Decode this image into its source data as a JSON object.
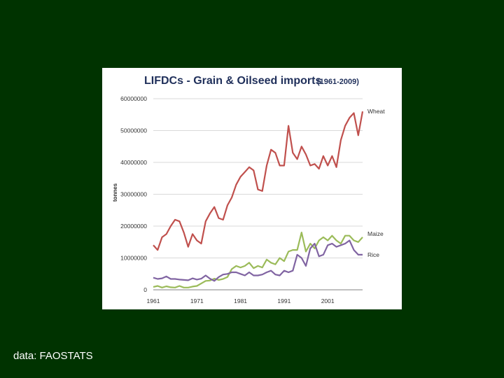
{
  "caption": "data: FAOSTATS",
  "colors": {
    "background": "#003300",
    "card": "#ffffff",
    "wheat": "#c0504d",
    "maize": "#9bbb59",
    "rice": "#8064a2",
    "grid": "#d9d9d9"
  },
  "chart_data": {
    "type": "line",
    "title": "LIFDCs - Grain & Oilseed imports",
    "subtitle": "(1961-2009)",
    "xlabel": "",
    "ylabel": "tonnes",
    "xlim": [
      1961,
      2009
    ],
    "ylim": [
      0,
      60000000
    ],
    "grid": true,
    "legend": "right, next to series ends",
    "yticks": [
      {
        "value": 0,
        "label": "0"
      },
      {
        "value": 10000000,
        "label": "10000000"
      },
      {
        "value": 20000000,
        "label": "20000000"
      },
      {
        "value": 30000000,
        "label": "30000000"
      },
      {
        "value": 40000000,
        "label": "40000000"
      },
      {
        "value": 50000000,
        "label": "50000000"
      },
      {
        "value": 60000000,
        "label": "60000000"
      }
    ],
    "xticks": [
      {
        "value": 1961,
        "label": "1961"
      },
      {
        "value": 1971,
        "label": "1971"
      },
      {
        "value": 1981,
        "label": "1981"
      },
      {
        "value": 1991,
        "label": "1991"
      },
      {
        "value": 2001,
        "label": "2001"
      }
    ],
    "x": [
      1961,
      1962,
      1963,
      1964,
      1965,
      1966,
      1967,
      1968,
      1969,
      1970,
      1971,
      1972,
      1973,
      1974,
      1975,
      1976,
      1977,
      1978,
      1979,
      1980,
      1981,
      1982,
      1983,
      1984,
      1985,
      1986,
      1987,
      1988,
      1989,
      1990,
      1991,
      1992,
      1993,
      1994,
      1995,
      1996,
      1997,
      1998,
      1999,
      2000,
      2001,
      2002,
      2003,
      2004,
      2005,
      2006,
      2007,
      2008,
      2009
    ],
    "series": [
      {
        "name": "Wheat",
        "color": "#c0504d",
        "values": [
          14000000,
          12500000,
          16500000,
          17500000,
          20000000,
          22000000,
          21500000,
          18000000,
          13500000,
          17500000,
          15500000,
          14500000,
          21500000,
          24000000,
          26000000,
          22500000,
          22000000,
          26500000,
          29000000,
          33000000,
          35500000,
          37000000,
          38500000,
          37500000,
          31500000,
          31000000,
          39000000,
          44000000,
          43000000,
          39000000,
          39000000,
          51500000,
          43000000,
          41000000,
          45000000,
          42500000,
          39000000,
          39500000,
          38000000,
          42000000,
          39000000,
          42000000,
          38500000,
          47000000,
          51500000,
          54000000,
          55500000,
          48500000,
          56000000
        ]
      },
      {
        "name": "Maize",
        "color": "#9bbb59",
        "values": [
          900000,
          1200000,
          700000,
          1100000,
          800000,
          700000,
          1200000,
          700000,
          700000,
          1000000,
          1200000,
          2000000,
          2800000,
          2900000,
          3500000,
          3100000,
          3400000,
          4000000,
          6500000,
          7500000,
          7000000,
          7500000,
          8500000,
          6800000,
          7500000,
          7000000,
          9500000,
          8500000,
          8000000,
          10000000,
          9000000,
          12000000,
          12500000,
          12500000,
          18000000,
          12000000,
          14500000,
          13000000,
          15500000,
          16500000,
          15500000,
          17000000,
          15500000,
          14500000,
          17000000,
          17000000,
          15500000,
          15000000,
          16500000
        ]
      },
      {
        "name": "Rice",
        "color": "#8064a2",
        "values": [
          3800000,
          3400000,
          3600000,
          4200000,
          3400000,
          3400000,
          3200000,
          3100000,
          3000000,
          3600000,
          3200000,
          3500000,
          4500000,
          3500000,
          2800000,
          4000000,
          4800000,
          5000000,
          5500000,
          5500000,
          5000000,
          4500000,
          5500000,
          4500000,
          4500000,
          4800000,
          5500000,
          6000000,
          4800000,
          4500000,
          6000000,
          5500000,
          6000000,
          11000000,
          10000000,
          7500000,
          13000000,
          14500000,
          10500000,
          11000000,
          14000000,
          14500000,
          13500000,
          14000000,
          14500000,
          15500000,
          12500000,
          11000000,
          11000000
        ]
      }
    ]
  }
}
